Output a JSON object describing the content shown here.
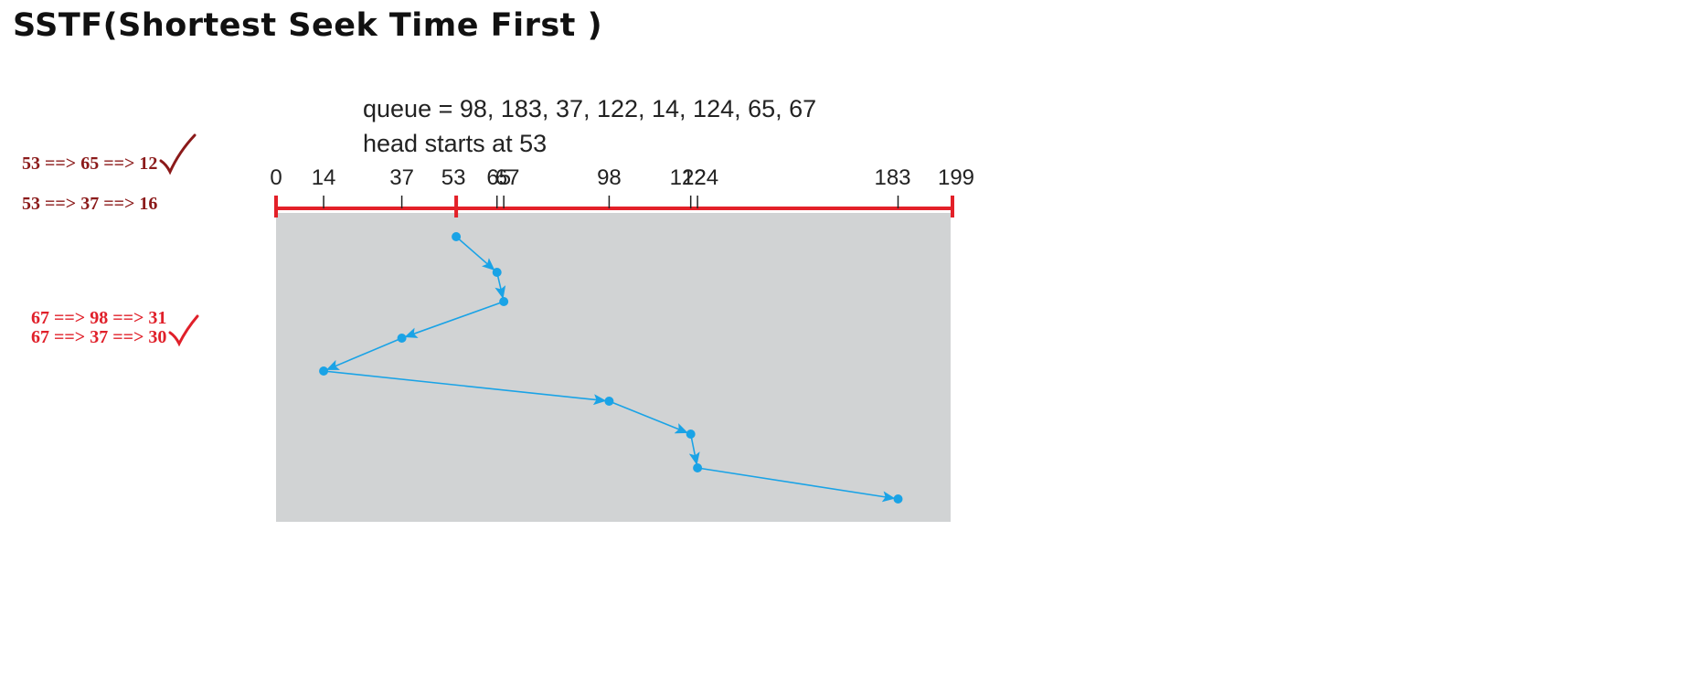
{
  "title": "SSTF(Shortest Seek Time First )",
  "diagram": {
    "queue_text": "queue = 98, 183, 37, 122, 14, 124, 65, 67",
    "head_text": "head starts at 53",
    "axis_ticks": [
      {
        "label": "0",
        "value": 0
      },
      {
        "label": "14",
        "value": 14
      },
      {
        "label": "37",
        "value": 37
      },
      {
        "label": "53",
        "value": 53
      },
      {
        "label": "65",
        "value": 65
      },
      {
        "label": "67",
        "value": 67
      },
      {
        "label": "98",
        "value": 98
      },
      {
        "label": "122",
        "value": 122
      },
      {
        "label": "124",
        "value": 124
      },
      {
        "label": "183",
        "value": 183
      },
      {
        "label": "199",
        "value": 199
      }
    ],
    "path": [
      53,
      65,
      67,
      37,
      14,
      98,
      122,
      124,
      183
    ],
    "colors": {
      "axis": "#e32028",
      "path": "#1aa3e6",
      "panel": "#d1d3d4",
      "note_dark": "#8b1a1a",
      "note_red": "#e0202a"
    }
  },
  "annotations": [
    {
      "text": "53 ==> 65 ==> 12",
      "checked": true
    },
    {
      "text": "53 ==> 37 ==> 16",
      "checked": false
    },
    {
      "text": "67 ==> 98  ==> 31",
      "checked": false
    },
    {
      "text": "67 ==> 37 ==> 30",
      "checked": true
    }
  ]
}
